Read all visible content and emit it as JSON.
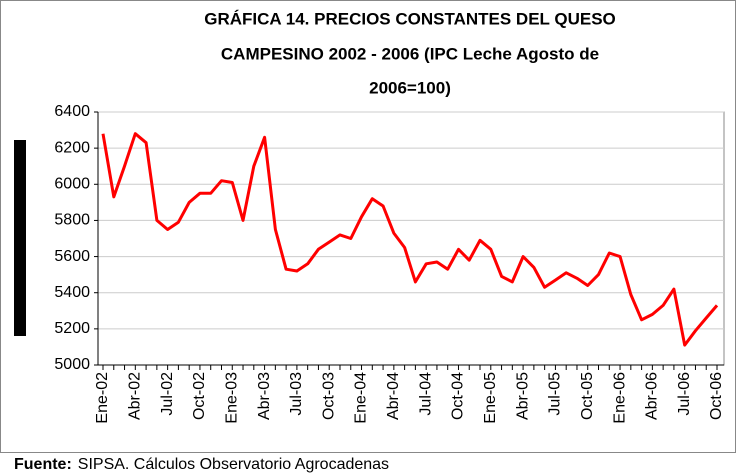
{
  "chart_data": {
    "type": "line",
    "title": [
      "GRÁFICA 14. PRECIOS CONSTANTES DEL QUESO",
      "CAMPESINO 2002 - 2006 (IPC Leche Agosto de",
      "2006=100)"
    ],
    "categories": [
      "Ene-02",
      null,
      null,
      "Abr-02",
      null,
      null,
      "Jul-02",
      null,
      null,
      "Oct-02",
      null,
      null,
      "Ene-03",
      null,
      null,
      "Abr-03",
      null,
      null,
      "Jul-03",
      null,
      null,
      "Oct-03",
      null,
      null,
      "Ene-04",
      null,
      null,
      "Abr-04",
      null,
      null,
      "Jul-04",
      null,
      null,
      "Oct-04",
      null,
      null,
      "Ene-05",
      null,
      null,
      "Abr-05",
      null,
      null,
      "Jul-05",
      null,
      null,
      "Oct-05",
      null,
      null,
      "Ene-06",
      null,
      null,
      "Abr-06",
      null,
      null,
      "Jul-06",
      null,
      null,
      "Oct-06"
    ],
    "values": [
      6280,
      5930,
      6100,
      6280,
      6230,
      5800,
      5750,
      5790,
      5900,
      5950,
      5950,
      6020,
      6010,
      5800,
      6100,
      6260,
      5750,
      5530,
      5520,
      5560,
      5640,
      5680,
      5720,
      5700,
      5820,
      5920,
      5880,
      5730,
      5650,
      5460,
      5560,
      5570,
      5530,
      5640,
      5580,
      5690,
      5640,
      5490,
      5460,
      5600,
      5540,
      5430,
      5470,
      5510,
      5480,
      5440,
      5500,
      5620,
      5600,
      5390,
      5250,
      5280,
      5330,
      5420,
      5110,
      5190,
      5260,
      5330
    ],
    "color": "#ff0000",
    "ylim": [
      5000,
      6400
    ],
    "yticks": [
      5000,
      5200,
      5400,
      5600,
      5800,
      6000,
      6200,
      6400
    ],
    "grid": true,
    "source_label": "Fuente:",
    "source_text": "SIPSA. Cálculos Observatorio Agrocadenas"
  }
}
